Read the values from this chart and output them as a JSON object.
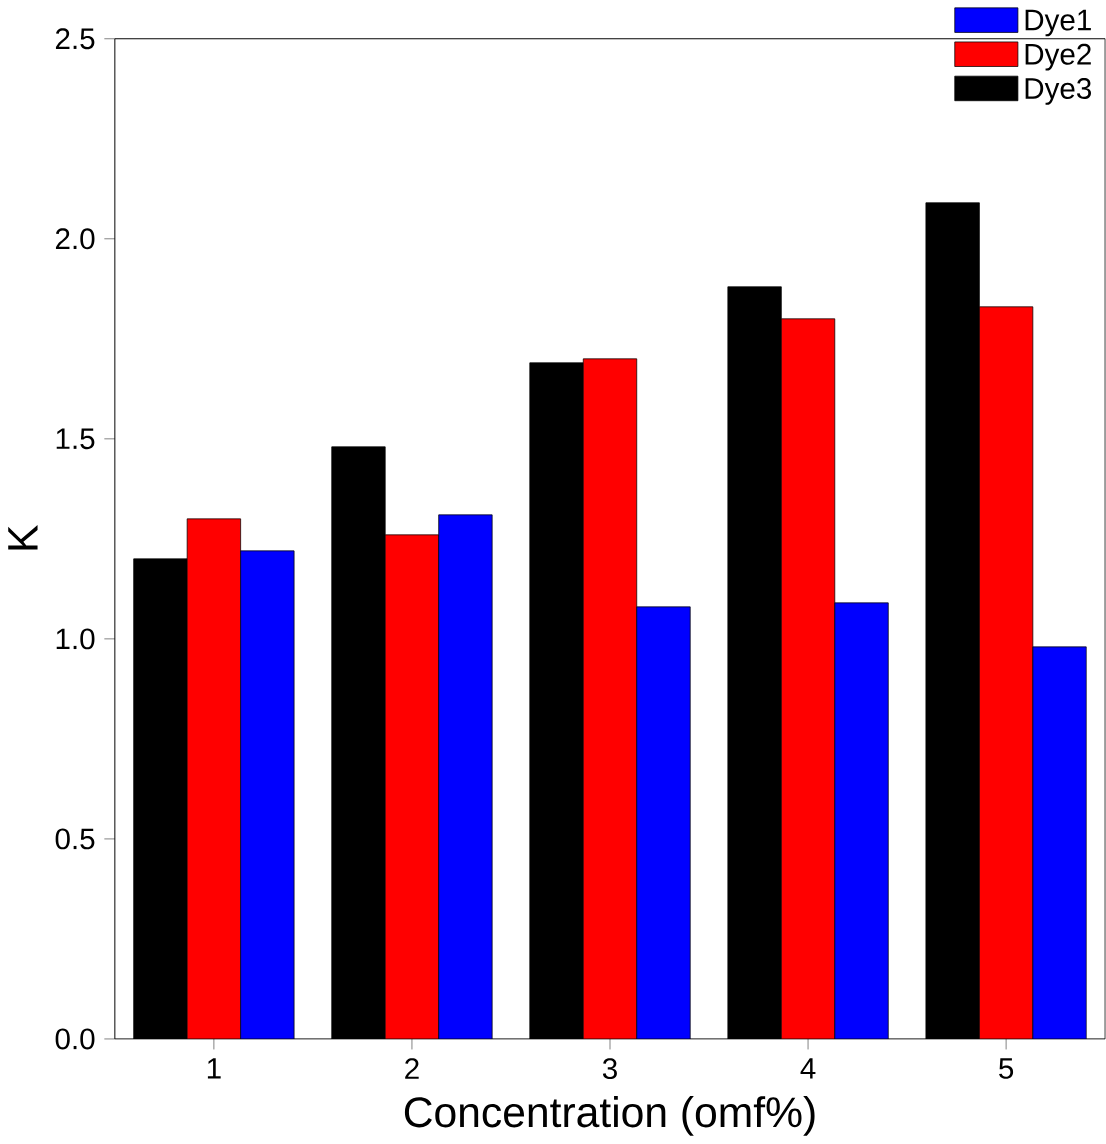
{
  "chart_data": {
    "type": "bar",
    "xlabel": "Concentration (omf%)",
    "ylabel": "K",
    "categories": [
      "1",
      "2",
      "3",
      "4",
      "5"
    ],
    "series": [
      {
        "name": "Dye1",
        "color": "#0000ff",
        "values": [
          1.22,
          1.31,
          1.08,
          1.09,
          0.98
        ]
      },
      {
        "name": "Dye2",
        "color": "#ff0000",
        "values": [
          1.3,
          1.26,
          1.7,
          1.8,
          1.83
        ]
      },
      {
        "name": "Dye3",
        "color": "#000000",
        "values": [
          1.2,
          1.48,
          1.69,
          1.88,
          2.09
        ]
      }
    ],
    "ylim": [
      0,
      2.5
    ],
    "yticks": [
      {
        "value": 0,
        "label": "0.0"
      },
      {
        "value": 0.5,
        "label": "0.5"
      },
      {
        "value": 1,
        "label": "1.0"
      },
      {
        "value": 1.5,
        "label": "1.5"
      },
      {
        "value": 2,
        "label": "2.0"
      },
      {
        "value": 2.5,
        "label": "2.5"
      }
    ],
    "grid": false,
    "legend": "top right"
  }
}
